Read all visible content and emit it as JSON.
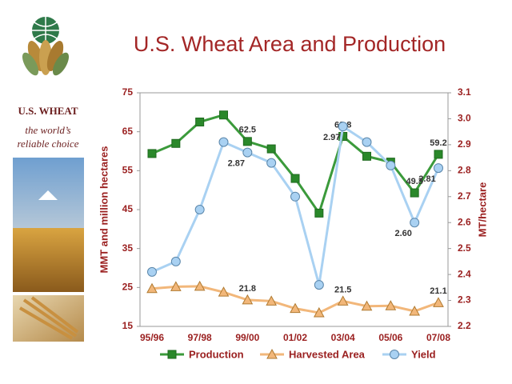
{
  "sidebar": {
    "brand": "U.S. WHEAT",
    "tagline": [
      "the world’s",
      "reliable choice"
    ]
  },
  "chart_data": {
    "type": "line",
    "title": "U.S. Wheat Area and Production",
    "y_label": "MMT and million hectares",
    "y2_label": "MT/hectare",
    "categories": [
      "95/96",
      null,
      "97/98",
      null,
      "99/00",
      null,
      "01/02",
      null,
      "03/04",
      null,
      "05/06",
      null,
      "07/08"
    ],
    "ylim": [
      15,
      75
    ],
    "yticks": [
      15,
      25,
      35,
      45,
      55,
      65,
      75
    ],
    "y2lim": [
      2.2,
      3.1
    ],
    "y2ticks": [
      2.2,
      2.3,
      2.4,
      2.5,
      2.6,
      2.7,
      2.8,
      2.9,
      {
        "value": 3,
        "label": "3.0"
      },
      3.1
    ],
    "legend": "bottom",
    "series": [
      {
        "name": "Production",
        "color": "#3b9a3b",
        "marker": "square",
        "values": [
          59.4,
          62.0,
          67.5,
          69.3,
          62.5,
          60.6,
          53.0,
          44.1,
          63.8,
          58.7,
          57.2,
          49.3,
          59.2
        ],
        "value_labels": [
          null,
          null,
          null,
          null,
          "62.5",
          null,
          null,
          null,
          "63.8",
          null,
          null,
          "49.3",
          "59.2"
        ]
      },
      {
        "name": "Harvested Area",
        "color": "#f2b77a",
        "marker": "triangle",
        "values": [
          24.7,
          25.2,
          25.3,
          23.8,
          21.8,
          21.5,
          19.6,
          18.5,
          21.5,
          20.2,
          20.3,
          18.9,
          21.1
        ],
        "value_labels": [
          null,
          null,
          null,
          null,
          "21.8",
          null,
          null,
          null,
          "21.5",
          null,
          null,
          null,
          "21.1"
        ]
      },
      {
        "name": "Yield",
        "color": "#a9d1f2",
        "marker": "circle",
        "axis": "y2",
        "values": [
          2.41,
          2.45,
          2.65,
          2.91,
          2.87,
          2.83,
          2.7,
          2.36,
          2.97,
          2.91,
          2.82,
          2.6,
          2.81
        ],
        "value_labels": [
          null,
          null,
          null,
          null,
          "2.87",
          null,
          null,
          null,
          "2.97",
          null,
          null,
          "2.60",
          "2.81"
        ]
      }
    ]
  }
}
